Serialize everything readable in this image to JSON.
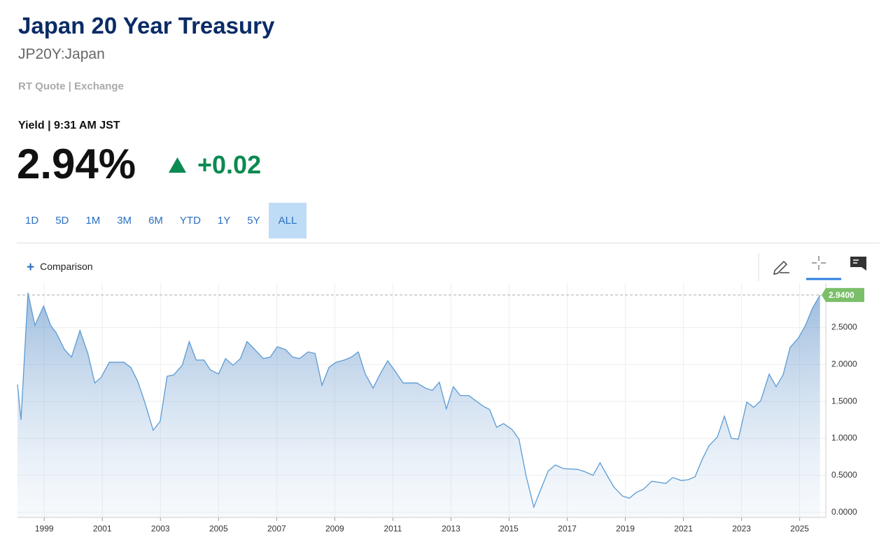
{
  "header": {
    "title": "Japan 20 Year Treasury",
    "symbol": "JP20Y:Japan",
    "quote_source": "RT Quote | Exchange",
    "yield_label": "Yield | 9:31 AM JST",
    "price": "2.94%",
    "change": "+0.02"
  },
  "ranges": [
    "1D",
    "5D",
    "1M",
    "3M",
    "6M",
    "YTD",
    "1Y",
    "5Y",
    "ALL"
  ],
  "selected_range": "ALL",
  "comparison": "Comparison",
  "chart_data": {
    "type": "area",
    "color": "#5b9bd5",
    "x": [
      1998.08,
      1998.2,
      1998.44,
      1998.68,
      1998.98,
      1999.22,
      1999.41,
      1999.7,
      1999.94,
      2000.23,
      2000.5,
      2000.74,
      2000.95,
      2001.24,
      2001.74,
      2001.98,
      2002.22,
      2002.46,
      2002.75,
      2002.99,
      2003.23,
      2003.46,
      2003.75,
      2003.99,
      2004.23,
      2004.5,
      2004.71,
      2005.0,
      2005.24,
      2005.5,
      2005.75,
      2005.98,
      2006.25,
      2006.54,
      2006.78,
      2007.02,
      2007.31,
      2007.55,
      2007.79,
      2008.08,
      2008.32,
      2008.56,
      2008.8,
      2009.04,
      2009.33,
      2009.57,
      2009.81,
      2010.05,
      2010.32,
      2010.56,
      2010.82,
      2011.06,
      2011.35,
      2011.83,
      2012.12,
      2012.36,
      2012.6,
      2012.84,
      2013.08,
      2013.32,
      2013.61,
      2013.85,
      2014.09,
      2014.33,
      2014.57,
      2014.81,
      2015.1,
      2015.34,
      2015.58,
      2015.85,
      2016.09,
      2016.35,
      2016.59,
      2016.88,
      2017.36,
      2017.6,
      2017.89,
      2018.13,
      2018.37,
      2018.61,
      2018.9,
      2019.14,
      2019.38,
      2019.62,
      2019.91,
      2020.39,
      2020.63,
      2020.92,
      2021.16,
      2021.4,
      2021.64,
      2021.88,
      2022.17,
      2022.41,
      2022.65,
      2022.89,
      2023.18,
      2023.42,
      2023.66,
      2023.95,
      2024.19,
      2024.43,
      2024.67,
      2024.96,
      2025.2,
      2025.44,
      2025.7
    ],
    "values": [
      1.73,
      1.25,
      2.97,
      2.53,
      2.79,
      2.53,
      2.43,
      2.2,
      2.1,
      2.46,
      2.15,
      1.75,
      1.82,
      2.03,
      2.03,
      1.96,
      1.77,
      1.49,
      1.11,
      1.23,
      1.84,
      1.86,
      1.99,
      2.31,
      2.06,
      2.06,
      1.93,
      1.87,
      2.08,
      1.99,
      2.08,
      2.31,
      2.2,
      2.08,
      2.1,
      2.24,
      2.2,
      2.1,
      2.08,
      2.17,
      2.15,
      1.72,
      1.96,
      2.03,
      2.06,
      2.1,
      2.17,
      1.87,
      1.68,
      1.87,
      2.05,
      1.92,
      1.75,
      1.75,
      1.68,
      1.65,
      1.76,
      1.4,
      1.7,
      1.58,
      1.58,
      1.51,
      1.44,
      1.39,
      1.15,
      1.2,
      1.12,
      0.99,
      0.5,
      0.07,
      0.31,
      0.56,
      0.64,
      0.59,
      0.58,
      0.55,
      0.5,
      0.67,
      0.5,
      0.34,
      0.22,
      0.19,
      0.27,
      0.31,
      0.42,
      0.39,
      0.47,
      0.43,
      0.44,
      0.48,
      0.71,
      0.9,
      1.02,
      1.3,
      1.0,
      0.99,
      1.49,
      1.42,
      1.51,
      1.87,
      1.7,
      1.86,
      2.23,
      2.36,
      2.53,
      2.76,
      2.94
    ],
    "xlim": [
      1998.08,
      2025.9
    ],
    "xticks": [
      1999,
      2001,
      2003,
      2005,
      2007,
      2009,
      2011,
      2013,
      2015,
      2017,
      2019,
      2021,
      2023,
      2025
    ],
    "ylim": [
      -0.07,
      3.1
    ],
    "yticks": [
      {
        "value": 0,
        "label": "0.0000"
      },
      {
        "value": 0.5,
        "label": "0.5000"
      },
      {
        "value": 1,
        "label": "1.0000"
      },
      {
        "value": 1.5,
        "label": "1.5000"
      },
      {
        "value": 2,
        "label": "2.0000"
      },
      {
        "value": 2.5,
        "label": "2.5000"
      }
    ],
    "last_value": {
      "value": 2.94,
      "label": "2.9400"
    },
    "grid": true
  }
}
